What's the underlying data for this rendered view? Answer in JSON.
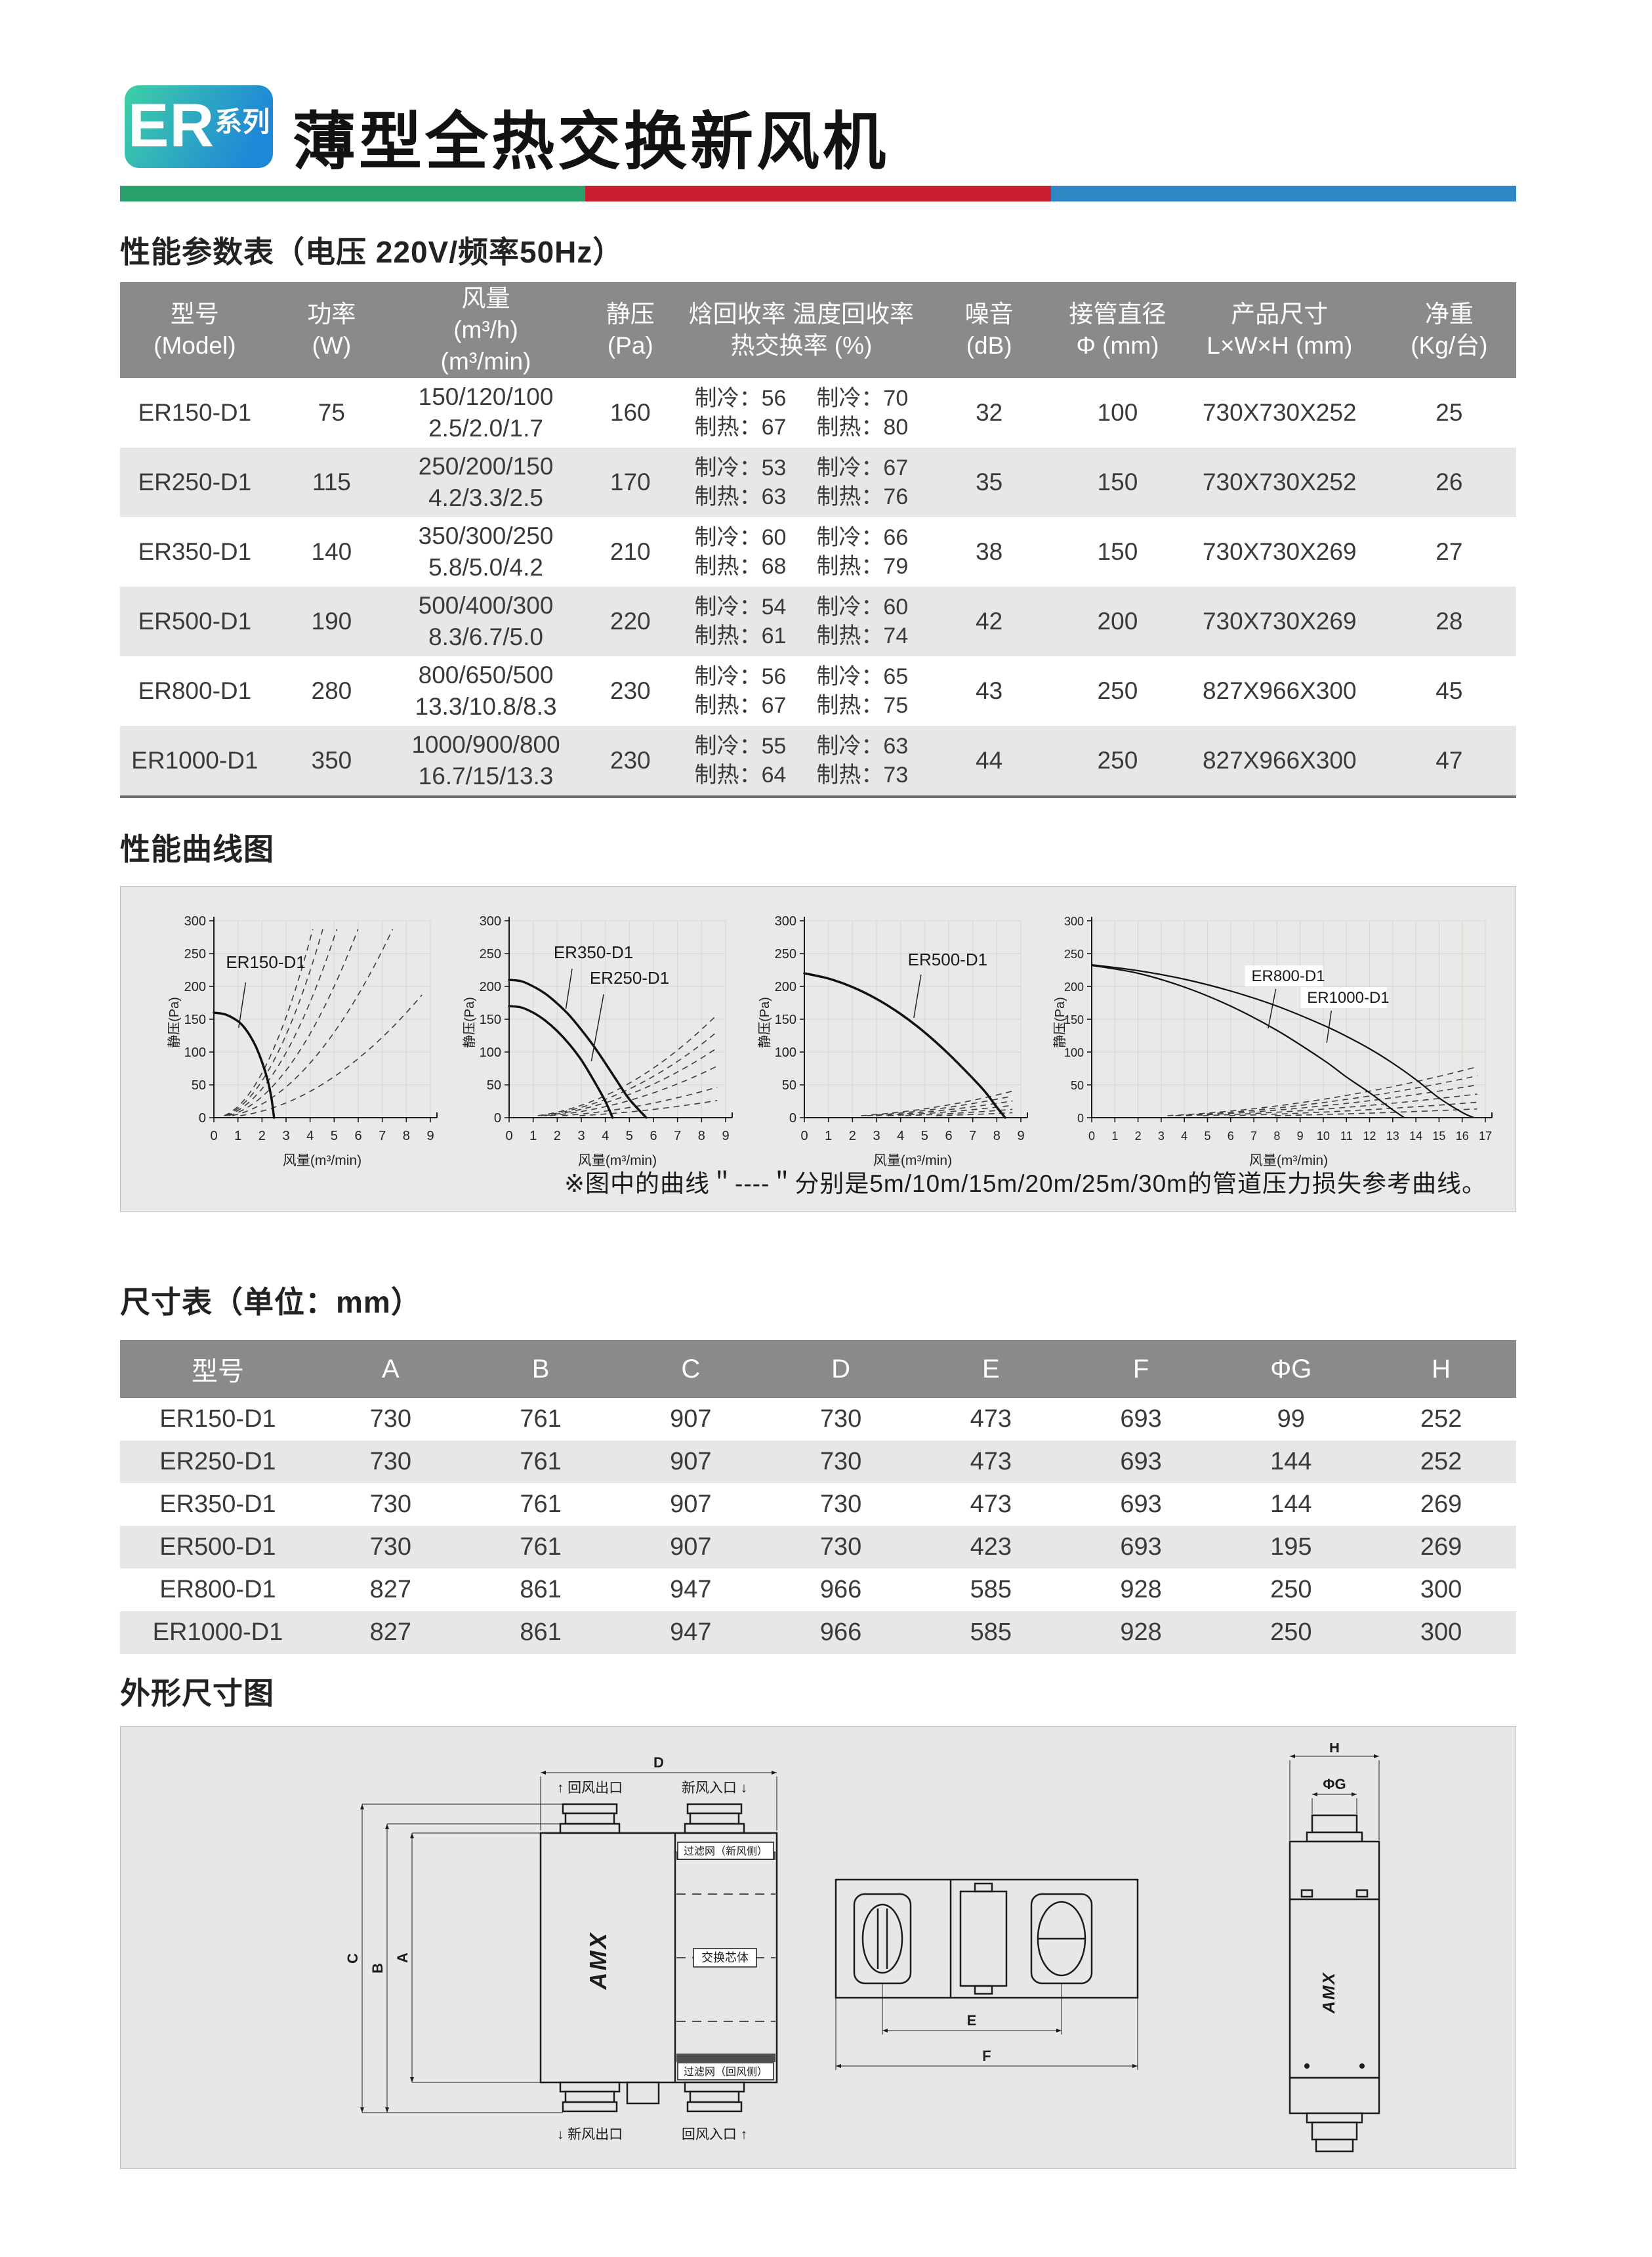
{
  "header": {
    "badge_er": "ER",
    "badge_series": "系列",
    "title": "薄型全热交换新风机"
  },
  "theme": {
    "divider_green": "#2aa06b",
    "divider_red": "#c81e2d",
    "divider_blue": "#2e86c4",
    "header_gray": "#8a8a8a",
    "alt_row": "#e7e7e7",
    "panel_bg": "#e9e9e7",
    "badge_gradient_start": "#3ed0a5",
    "badge_gradient_end": "#1f87d8"
  },
  "param_section": {
    "title": "性能参数表（电压 220V/频率50Hz）"
  },
  "param_table": {
    "headers": [
      [
        "型号",
        "(Model)"
      ],
      [
        "功率",
        "(W)"
      ],
      [
        "风量",
        "(m³/h)",
        "(m³/min)"
      ],
      [
        "静压",
        "(Pa)"
      ],
      [
        "焓回收率 温度回收率",
        "热交换率 (%)"
      ],
      [
        "噪音",
        "(dB)"
      ],
      [
        "接管直径",
        "Φ (mm)"
      ],
      [
        "产品尺寸",
        "L×W×H (mm)"
      ],
      [
        "净重",
        "(Kg/台)"
      ]
    ],
    "rows": [
      {
        "model": "ER150-D1",
        "power": "75",
        "airflow": [
          "150/120/100",
          "2.5/2.0/1.7"
        ],
        "static_pressure": "160",
        "recovery": [
          [
            "制冷：56",
            "制冷：70"
          ],
          [
            "制热：67",
            "制热：80"
          ]
        ],
        "noise": "32",
        "duct": "100",
        "size": "730X730X252",
        "weight": "25"
      },
      {
        "model": "ER250-D1",
        "power": "115",
        "airflow": [
          "250/200/150",
          "4.2/3.3/2.5"
        ],
        "static_pressure": "170",
        "recovery": [
          [
            "制冷：53",
            "制冷：67"
          ],
          [
            "制热：63",
            "制热：76"
          ]
        ],
        "noise": "35",
        "duct": "150",
        "size": "730X730X252",
        "weight": "26"
      },
      {
        "model": "ER350-D1",
        "power": "140",
        "airflow": [
          "350/300/250",
          "5.8/5.0/4.2"
        ],
        "static_pressure": "210",
        "recovery": [
          [
            "制冷：60",
            "制冷：66"
          ],
          [
            "制热：68",
            "制热：79"
          ]
        ],
        "noise": "38",
        "duct": "150",
        "size": "730X730X269",
        "weight": "27"
      },
      {
        "model": "ER500-D1",
        "power": "190",
        "airflow": [
          "500/400/300",
          "8.3/6.7/5.0"
        ],
        "static_pressure": "220",
        "recovery": [
          [
            "制冷：54",
            "制冷：60"
          ],
          [
            "制热：61",
            "制热：74"
          ]
        ],
        "noise": "42",
        "duct": "200",
        "size": "730X730X269",
        "weight": "28"
      },
      {
        "model": "ER800-D1",
        "power": "280",
        "airflow": [
          "800/650/500",
          "13.3/10.8/8.3"
        ],
        "static_pressure": "230",
        "recovery": [
          [
            "制冷：56",
            "制冷：65"
          ],
          [
            "制热：67",
            "制热：75"
          ]
        ],
        "noise": "43",
        "duct": "250",
        "size": "827X966X300",
        "weight": "45"
      },
      {
        "model": "ER1000-D1",
        "power": "350",
        "airflow": [
          "1000/900/800",
          "16.7/15/13.3"
        ],
        "static_pressure": "230",
        "recovery": [
          [
            "制冷：55",
            "制冷：63"
          ],
          [
            "制热：64",
            "制热：73"
          ]
        ],
        "noise": "44",
        "duct": "250",
        "size": "827X966X300",
        "weight": "47"
      }
    ]
  },
  "curves_section": {
    "title": "性能曲线图",
    "note": "※图中的曲线＂----＂分别是5m/10m/15m/20m/25m/30m的管道压力损失参考曲线。"
  },
  "chart_data": [
    {
      "type": "line",
      "xlabel": "风量(m³/min)",
      "ylabel": "静压(Pa)",
      "xlim": [
        0,
        9
      ],
      "ylim": [
        0,
        300
      ],
      "xtick_step": 1,
      "ytick_step": 50,
      "grid": true,
      "legend_position": "inline",
      "series": [
        {
          "name": "ER150-D1",
          "points": [
            [
              0,
              160
            ],
            [
              0.5,
              157
            ],
            [
              1,
              147
            ],
            [
              1.25,
              138
            ],
            [
              1.5,
              125
            ],
            [
              1.75,
              108
            ],
            [
              2,
              85
            ],
            [
              2.25,
              55
            ],
            [
              2.4,
              28
            ],
            [
              2.5,
              0
            ]
          ]
        }
      ],
      "dashed_system_curves_k": [
        17,
        14,
        11,
        8,
        5.2,
        2.5
      ]
    },
    {
      "type": "line",
      "xlabel": "风量(m³/min)",
      "ylabel": "静压(Pa)",
      "xlim": [
        0,
        9
      ],
      "ylim": [
        0,
        300
      ],
      "xtick_step": 1,
      "ytick_step": 50,
      "grid": true,
      "legend_position": "inline",
      "series": [
        {
          "name": "ER350-D1",
          "points": [
            [
              0,
              210
            ],
            [
              0.5,
              208
            ],
            [
              1,
              200
            ],
            [
              1.5,
              189
            ],
            [
              2,
              174
            ],
            [
              2.5,
              156
            ],
            [
              3,
              134
            ],
            [
              3.5,
              110
            ],
            [
              4,
              83
            ],
            [
              4.5,
              55
            ],
            [
              5,
              28
            ],
            [
              5.7,
              0
            ]
          ]
        },
        {
          "name": "ER250-D1",
          "points": [
            [
              0,
              170
            ],
            [
              0.5,
              168
            ],
            [
              1,
              160
            ],
            [
              1.5,
              148
            ],
            [
              2,
              132
            ],
            [
              2.5,
              112
            ],
            [
              3,
              88
            ],
            [
              3.5,
              58
            ],
            [
              4,
              25
            ],
            [
              4.3,
              0
            ]
          ]
        }
      ],
      "dashed_system_curves_k": [
        2.1,
        1.75,
        1.42,
        1.05,
        0.62,
        0.35
      ]
    },
    {
      "type": "line",
      "xlabel": "风量(m³/min)",
      "ylabel": "静压(Pa)",
      "xlim": [
        0,
        9
      ],
      "ylim": [
        0,
        300
      ],
      "xtick_step": 1,
      "ytick_step": 50,
      "grid": true,
      "legend_position": "inline",
      "series": [
        {
          "name": "ER500-D1",
          "points": [
            [
              0,
              220
            ],
            [
              1,
              212
            ],
            [
              2,
              199
            ],
            [
              3,
              181
            ],
            [
              4,
              158
            ],
            [
              5,
              130
            ],
            [
              6,
              97
            ],
            [
              7,
              60
            ],
            [
              7.5,
              40
            ],
            [
              8,
              16
            ],
            [
              8.35,
              0
            ]
          ]
        }
      ],
      "dashed_system_curves_k": [
        0.54,
        0.44,
        0.34,
        0.25,
        0.17,
        0.1
      ]
    },
    {
      "type": "line",
      "xlabel": "风量(m³/min)",
      "ylabel": "静压(Pa)",
      "xlim": [
        0,
        17
      ],
      "ylim": [
        0,
        300
      ],
      "xtick_step": 1,
      "ytick_step": 50,
      "grid": true,
      "legend_position": "inline",
      "series": [
        {
          "name": "ER800-D1",
          "points": [
            [
              0,
              232
            ],
            [
              2,
              220
            ],
            [
              4,
              199
            ],
            [
              6,
              170
            ],
            [
              8,
              133
            ],
            [
              10,
              88
            ],
            [
              11,
              62
            ],
            [
              12,
              38
            ],
            [
              13,
              12
            ],
            [
              13.5,
              0
            ]
          ]
        },
        {
          "name": "ER1000-D1",
          "points": [
            [
              0,
              233
            ],
            [
              2,
              224
            ],
            [
              4,
              211
            ],
            [
              6,
              193
            ],
            [
              8,
              170
            ],
            [
              10,
              141
            ],
            [
              11,
              124
            ],
            [
              12,
              105
            ],
            [
              13,
              83
            ],
            [
              14,
              58
            ],
            [
              15,
              30
            ],
            [
              16,
              8
            ],
            [
              16.5,
              0
            ]
          ]
        }
      ],
      "dashed_system_curves_k": [
        0.28,
        0.23,
        0.18,
        0.13,
        0.085,
        0.048
      ]
    }
  ],
  "dims_section": {
    "title": "尺寸表（单位：mm）"
  },
  "dim_table": {
    "headers": [
      "型号",
      "A",
      "B",
      "C",
      "D",
      "E",
      "F",
      "ΦG",
      "H"
    ],
    "rows": [
      [
        "ER150-D1",
        "730",
        "761",
        "907",
        "730",
        "473",
        "693",
        "99",
        "252"
      ],
      [
        "ER250-D1",
        "730",
        "761",
        "907",
        "730",
        "473",
        "693",
        "144",
        "252"
      ],
      [
        "ER350-D1",
        "730",
        "761",
        "907",
        "730",
        "473",
        "693",
        "144",
        "269"
      ],
      [
        "ER500-D1",
        "730",
        "761",
        "907",
        "730",
        "423",
        "693",
        "195",
        "269"
      ],
      [
        "ER800-D1",
        "827",
        "861",
        "947",
        "966",
        "585",
        "928",
        "250",
        "300"
      ],
      [
        "ER1000-D1",
        "827",
        "861",
        "947",
        "966",
        "585",
        "928",
        "250",
        "300"
      ]
    ]
  },
  "outline_section": {
    "title": "外形尺寸图",
    "labels": {
      "d": "D",
      "c": "C",
      "b": "B",
      "a": "A",
      "e": "E",
      "f": "F",
      "h": "H",
      "phi_g": "ΦG",
      "port_top_left": "↑ 回风出口",
      "port_top_right": "新风入口 ↓",
      "port_bottom_left": "↓ 新风出口",
      "port_bottom_right": "回风入口 ↑",
      "filter_fresh": "过滤网（新风侧）",
      "core": "交换芯体",
      "filter_return": "过滤网（回风侧）",
      "logo": "AMX"
    }
  }
}
